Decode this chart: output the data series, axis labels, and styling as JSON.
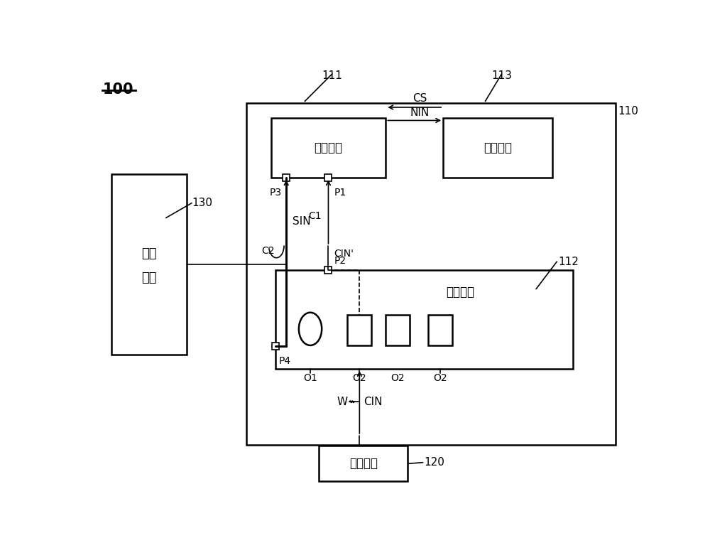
{
  "bg_color": "#ffffff",
  "fig_width": 10.0,
  "fig_height": 7.64,
  "label_100": "100",
  "label_110": "110",
  "label_111": "111",
  "label_112": "112",
  "label_113": "113",
  "label_130": "130",
  "label_120": "120",
  "label_jiankong": "监控芯片",
  "label_zhukong": "主控芯片",
  "label_juxian": "集线芯片",
  "label_dianzi130a": "电子",
  "label_dianzi130b": "装置",
  "label_dianzi120": "电子装置",
  "label_CS": "CS",
  "label_NIN": "NIN",
  "label_SIN": "SIN",
  "label_CIN_prime": "CIN'",
  "label_CIN": "CIN",
  "label_W": "W",
  "label_C1": "C1",
  "label_C2": "C2",
  "label_P1": "P1",
  "label_P2": "P2",
  "label_P3": "P3",
  "label_P4": "P4",
  "label_O1": "O1",
  "label_O2": "O2"
}
